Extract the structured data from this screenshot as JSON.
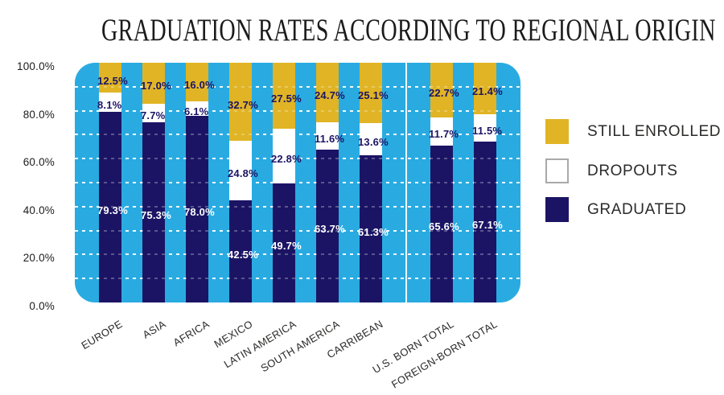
{
  "title": "GRADUATION RATES ACCORDING TO REGIONAL ORIGIN",
  "legend": [
    {
      "label": "STILL ENROLLED",
      "color": "#E0B425",
      "series_key": "still_enrolled"
    },
    {
      "label": "DROPOUTS",
      "color": "#FFFFFF",
      "series_key": "dropouts"
    },
    {
      "label": "GRADUATED",
      "color": "#1B1464",
      "series_key": "graduated"
    }
  ],
  "colors": {
    "plot_background": "#29ABE2",
    "still_enrolled": "#E0B425",
    "dropouts": "#FFFFFF",
    "graduated": "#1B1464",
    "label_on_light": "#1B1464",
    "label_on_dark": "#FFFFFF"
  },
  "chart_data": {
    "type": "bar",
    "stacked": true,
    "stack_order": "top-to-bottom",
    "title": "GRADUATION RATES ACCORDING TO REGIONAL ORIGIN",
    "categories": [
      "EUROPE",
      "ASIA",
      "AFRICA",
      "MEXICO",
      "LATIN AMERICA",
      "SOUTH AMERICA",
      "CARRIBEAN",
      "U.S. BORN TOTAL",
      "FOREIGN-BORN TOTAL"
    ],
    "series": [
      {
        "name": "STILL ENROLLED",
        "key": "still_enrolled",
        "color": "#E0B425",
        "label_color": "#1B1464",
        "values": [
          12.5,
          17.0,
          16.0,
          32.7,
          27.5,
          24.7,
          25.1,
          22.7,
          21.4
        ]
      },
      {
        "name": "DROPOUTS",
        "key": "dropouts",
        "color": "#FFFFFF",
        "label_color": "#1B1464",
        "values": [
          8.1,
          7.7,
          6.1,
          24.8,
          22.8,
          11.6,
          13.6,
          11.7,
          11.5
        ]
      },
      {
        "name": "GRADUATED",
        "key": "graduated",
        "color": "#1B1464",
        "label_color": "#FFFFFF",
        "values": [
          79.3,
          75.3,
          78.0,
          42.5,
          49.7,
          63.7,
          61.3,
          65.6,
          67.1
        ]
      }
    ],
    "value_label_format": "0.0%",
    "y_ticks": [
      "100.0%",
      "80.0%",
      "60.0%",
      "40.0%",
      "20.0%",
      "0.0%"
    ],
    "ylim": [
      0,
      100
    ],
    "grid": "dashed horizontal lines every 10%",
    "legend_position": "right",
    "separator_after_category": "CARRIBEAN",
    "x_label_rotation_deg": -31
  }
}
